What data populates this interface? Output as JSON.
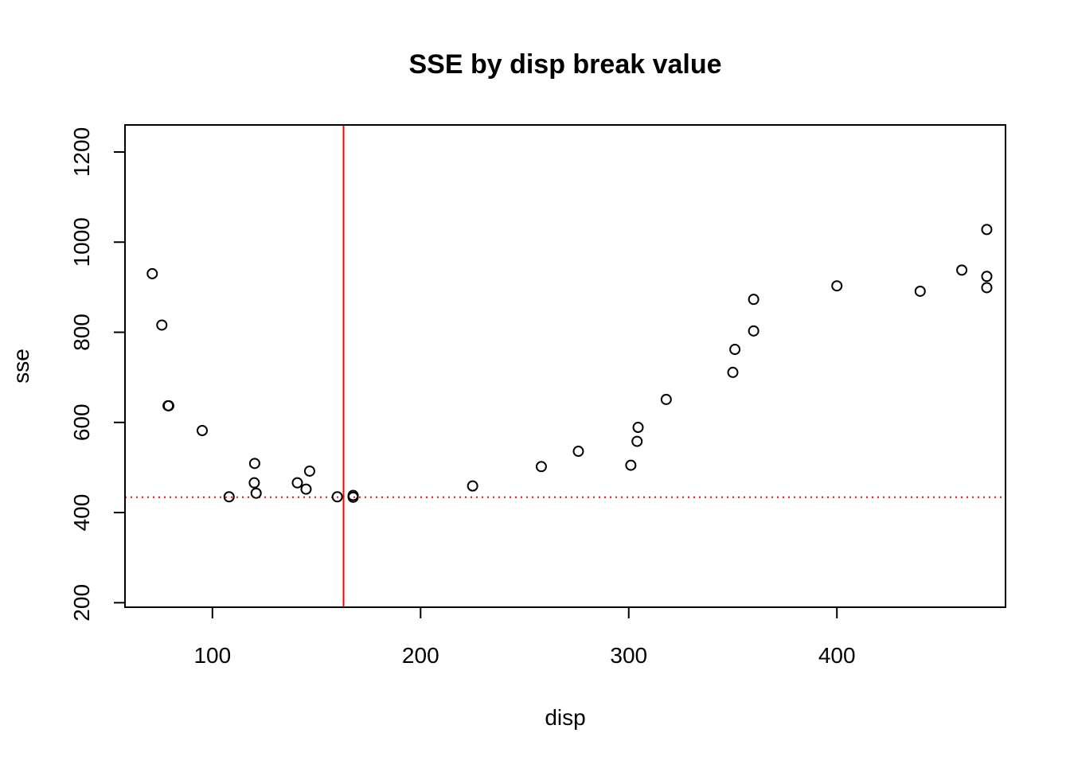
{
  "chart_data": {
    "type": "scatter",
    "title": "SSE by disp break value",
    "xlabel": "disp",
    "ylabel": "sse",
    "xlim": [
      58,
      481
    ],
    "ylim": [
      190,
      1260
    ],
    "x_ticks": [
      100,
      200,
      300,
      400
    ],
    "y_ticks": [
      200,
      400,
      600,
      800,
      1000,
      1200
    ],
    "x_tick_labels": [
      "100",
      "200",
      "300",
      "400"
    ],
    "y_tick_labels": [
      "200",
      "400",
      "600",
      "800",
      "1000",
      "1200"
    ],
    "grid": false,
    "legend": "none",
    "points": [
      {
        "x": 71.1,
        "y": 930
      },
      {
        "x": 75.7,
        "y": 816
      },
      {
        "x": 78.7,
        "y": 637
      },
      {
        "x": 79.0,
        "y": 637
      },
      {
        "x": 95.1,
        "y": 582
      },
      {
        "x": 108.0,
        "y": 435
      },
      {
        "x": 120.1,
        "y": 466
      },
      {
        "x": 120.3,
        "y": 509
      },
      {
        "x": 121.0,
        "y": 443
      },
      {
        "x": 140.8,
        "y": 466
      },
      {
        "x": 145.0,
        "y": 452
      },
      {
        "x": 146.7,
        "y": 492
      },
      {
        "x": 160.0,
        "y": 435
      },
      {
        "x": 167.6,
        "y": 438
      },
      {
        "x": 167.6,
        "y": 434
      },
      {
        "x": 225.0,
        "y": 459
      },
      {
        "x": 258.0,
        "y": 502
      },
      {
        "x": 275.8,
        "y": 536
      },
      {
        "x": 301.0,
        "y": 505
      },
      {
        "x": 304.0,
        "y": 558
      },
      {
        "x": 304.5,
        "y": 589
      },
      {
        "x": 318.0,
        "y": 651
      },
      {
        "x": 350.0,
        "y": 711
      },
      {
        "x": 351.0,
        "y": 762
      },
      {
        "x": 360.0,
        "y": 803
      },
      {
        "x": 360.0,
        "y": 873
      },
      {
        "x": 400.0,
        "y": 903
      },
      {
        "x": 440.0,
        "y": 891
      },
      {
        "x": 460.0,
        "y": 938
      },
      {
        "x": 472.0,
        "y": 899
      },
      {
        "x": 472.0,
        "y": 924
      },
      {
        "x": 472.0,
        "y": 1028
      }
    ],
    "reference_lines": [
      {
        "orientation": "vertical",
        "value": 163,
        "color": "#ff0000",
        "style": "solid"
      },
      {
        "orientation": "horizontal",
        "value": 434,
        "color": "#ff0000",
        "style": "dotted"
      }
    ],
    "point_style": {
      "shape": "open-circle",
      "color": "#000000"
    }
  }
}
